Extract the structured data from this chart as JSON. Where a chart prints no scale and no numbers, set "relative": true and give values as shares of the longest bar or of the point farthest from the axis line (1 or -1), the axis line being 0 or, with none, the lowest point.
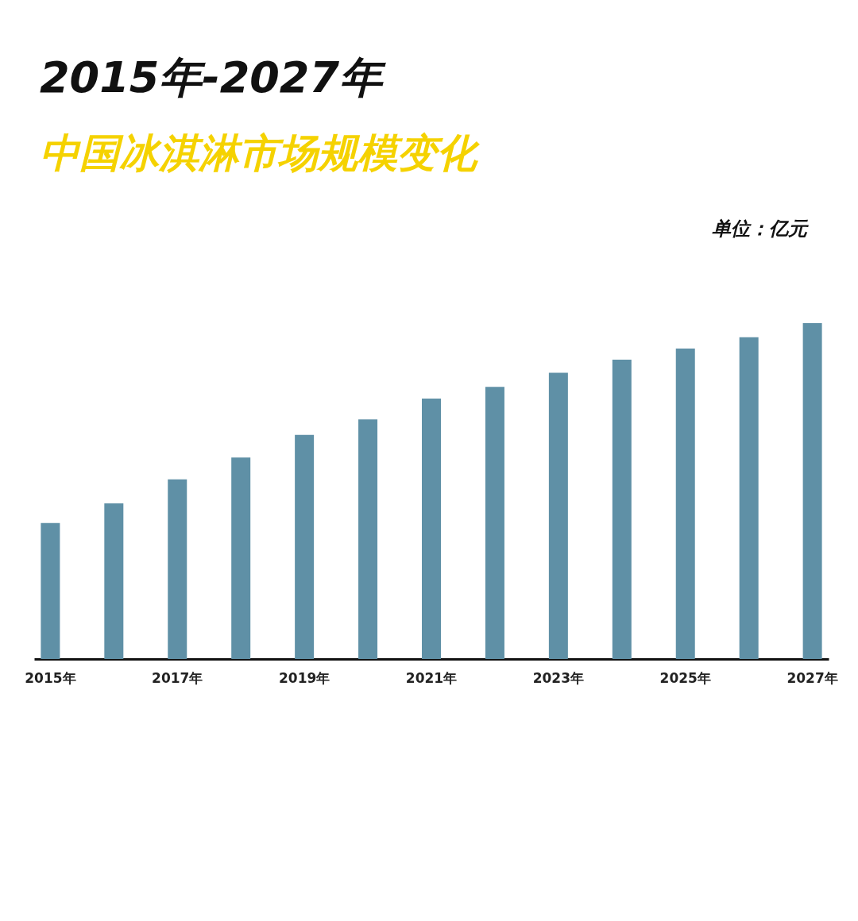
{
  "chart_data": {
    "type": "bar",
    "title": "2015年-2027年",
    "subtitle": "中国冰淇淋市场规模变化",
    "annotations": [
      "单位：亿元"
    ],
    "relative": true,
    "categories": [
      "2015年",
      null,
      "2017年",
      null,
      "2019年",
      null,
      "2021年",
      null,
      "2023年",
      null,
      "2025年",
      null,
      "2027年"
    ],
    "values": [
      0.405,
      0.463,
      0.535,
      0.6,
      0.667,
      0.713,
      0.775,
      0.81,
      0.852,
      0.891,
      0.924,
      0.958,
      1
    ],
    "color": "#5f90a6"
  }
}
